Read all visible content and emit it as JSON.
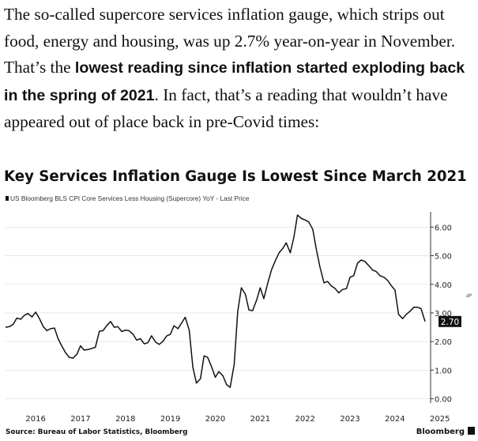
{
  "article": {
    "text_before": "The so-called supercore services inflation gauge, which strips out food, energy and housing, was up 2.7% year-on-year in November. That’s the ",
    "bold": "lowest reading since inflation started exploding back in the spring of 2021",
    "text_after": ". In fact, that’s a reading that wouldn’t have appeared out of place back in pre-Covid times:"
  },
  "chart_data": {
    "type": "line",
    "title": "Key Services Inflation Gauge Is Lowest Since March 2021",
    "legend": "US Bloomberg BLS CPI Core Services Less Housing (Supercore) YoY - Last Price",
    "legend_position": "top-left",
    "source": "Source: Bureau of Labor Statistics, Bloomberg",
    "brand": "Bloomberg",
    "axis_corner_label": "%",
    "ylim": [
      -0.15,
      6.7
    ],
    "y_ticks": [
      "0.00",
      "1.00",
      "2.00",
      "3.00",
      "4.00",
      "5.00",
      "6.00"
    ],
    "x_ticks": [
      "2016",
      "2017",
      "2018",
      "2019",
      "2020",
      "2021",
      "2022",
      "2023",
      "2024",
      "2025"
    ],
    "last_value_label": "2.70",
    "series": [
      {
        "name": "Supercore YoY",
        "color": "#111111",
        "points": [
          [
            2015.83,
            2.5
          ],
          [
            2015.92,
            2.52
          ],
          [
            2016.0,
            2.6
          ],
          [
            2016.08,
            2.82
          ],
          [
            2016.17,
            2.78
          ],
          [
            2016.25,
            2.92
          ],
          [
            2016.33,
            2.98
          ],
          [
            2016.42,
            2.86
          ],
          [
            2016.5,
            3.03
          ],
          [
            2016.58,
            2.82
          ],
          [
            2016.67,
            2.52
          ],
          [
            2016.75,
            2.38
          ],
          [
            2016.83,
            2.45
          ],
          [
            2016.92,
            2.47
          ],
          [
            2017.0,
            2.1
          ],
          [
            2017.08,
            1.85
          ],
          [
            2017.17,
            1.6
          ],
          [
            2017.25,
            1.45
          ],
          [
            2017.33,
            1.42
          ],
          [
            2017.42,
            1.56
          ],
          [
            2017.5,
            1.85
          ],
          [
            2017.58,
            1.7
          ],
          [
            2017.67,
            1.72
          ],
          [
            2017.75,
            1.76
          ],
          [
            2017.83,
            1.8
          ],
          [
            2017.92,
            2.36
          ],
          [
            2018.0,
            2.38
          ],
          [
            2018.08,
            2.55
          ],
          [
            2018.17,
            2.7
          ],
          [
            2018.25,
            2.5
          ],
          [
            2018.33,
            2.52
          ],
          [
            2018.42,
            2.35
          ],
          [
            2018.5,
            2.4
          ],
          [
            2018.58,
            2.38
          ],
          [
            2018.67,
            2.25
          ],
          [
            2018.75,
            2.05
          ],
          [
            2018.83,
            2.1
          ],
          [
            2018.92,
            1.92
          ],
          [
            2019.0,
            1.96
          ],
          [
            2019.08,
            2.2
          ],
          [
            2019.17,
            1.98
          ],
          [
            2019.25,
            1.9
          ],
          [
            2019.33,
            2.0
          ],
          [
            2019.42,
            2.2
          ],
          [
            2019.5,
            2.25
          ],
          [
            2019.58,
            2.55
          ],
          [
            2019.67,
            2.45
          ],
          [
            2019.75,
            2.65
          ],
          [
            2019.83,
            2.85
          ],
          [
            2019.92,
            2.4
          ],
          [
            2020.0,
            1.1
          ],
          [
            2020.08,
            0.55
          ],
          [
            2020.17,
            0.7
          ],
          [
            2020.25,
            1.5
          ],
          [
            2020.33,
            1.45
          ],
          [
            2020.42,
            1.1
          ],
          [
            2020.5,
            0.75
          ],
          [
            2020.58,
            0.95
          ],
          [
            2020.67,
            0.8
          ],
          [
            2020.75,
            0.5
          ],
          [
            2020.83,
            0.4
          ],
          [
            2020.92,
            1.2
          ],
          [
            2021.0,
            3.05
          ],
          [
            2021.08,
            3.88
          ],
          [
            2021.17,
            3.65
          ],
          [
            2021.25,
            3.1
          ],
          [
            2021.33,
            3.08
          ],
          [
            2021.42,
            3.45
          ],
          [
            2021.5,
            3.88
          ],
          [
            2021.58,
            3.5
          ],
          [
            2021.67,
            4.05
          ],
          [
            2021.75,
            4.5
          ],
          [
            2021.83,
            4.8
          ],
          [
            2021.92,
            5.1
          ],
          [
            2022.0,
            5.25
          ],
          [
            2022.08,
            5.45
          ],
          [
            2022.17,
            5.1
          ],
          [
            2022.25,
            5.65
          ],
          [
            2022.33,
            6.42
          ],
          [
            2022.42,
            6.3
          ],
          [
            2022.5,
            6.25
          ],
          [
            2022.58,
            6.18
          ],
          [
            2022.67,
            5.92
          ],
          [
            2022.75,
            5.22
          ],
          [
            2022.83,
            4.6
          ],
          [
            2022.92,
            4.05
          ],
          [
            2023.0,
            4.1
          ],
          [
            2023.08,
            3.95
          ],
          [
            2023.17,
            3.85
          ],
          [
            2023.25,
            3.7
          ],
          [
            2023.33,
            3.82
          ],
          [
            2023.42,
            3.85
          ],
          [
            2023.5,
            4.25
          ],
          [
            2023.58,
            4.3
          ],
          [
            2023.67,
            4.75
          ],
          [
            2023.75,
            4.85
          ],
          [
            2023.83,
            4.8
          ],
          [
            2023.92,
            4.65
          ],
          [
            2024.0,
            4.5
          ],
          [
            2024.08,
            4.45
          ],
          [
            2024.17,
            4.3
          ],
          [
            2024.25,
            4.25
          ],
          [
            2024.33,
            4.15
          ],
          [
            2024.42,
            3.95
          ],
          [
            2024.5,
            3.8
          ],
          [
            2024.58,
            2.95
          ],
          [
            2024.67,
            2.8
          ],
          [
            2024.75,
            2.95
          ],
          [
            2024.83,
            3.05
          ],
          [
            2024.92,
            3.2
          ],
          [
            2025.0,
            3.2
          ],
          [
            2025.08,
            3.15
          ],
          [
            2025.17,
            2.7
          ]
        ]
      }
    ]
  }
}
